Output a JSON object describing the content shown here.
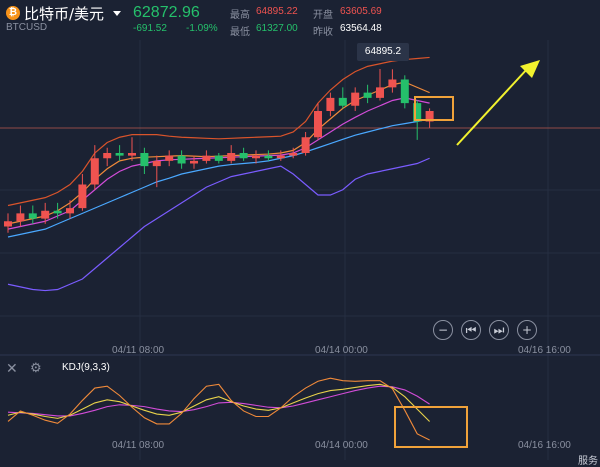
{
  "header": {
    "coin_icon": "bitcoin-icon",
    "coin_glyph": "₿",
    "pair": "比特币/美元",
    "symbol": "BTCUSD",
    "price": "62872.96",
    "change": "-691.52",
    "change_percent": "-1.09%",
    "high_label": "最高",
    "high_value": "64895.22",
    "open_label": "开盘",
    "open_value": "63605.69",
    "low_label": "最低",
    "low_value": "61327.00",
    "prev_label": "昨收",
    "prev_value": "63564.48"
  },
  "tooltip": "64895.2",
  "indicator": {
    "label": "KDJ(9,3,3)",
    "close_icon": "close-icon",
    "settings_icon": "gear-icon"
  },
  "zoom_controls": [
    {
      "icon": "zoom-out-icon",
      "glyph": "−"
    },
    {
      "icon": "skip-back-icon",
      "glyph": "⏮"
    },
    {
      "icon": "skip-forward-icon",
      "glyph": "⏭"
    },
    {
      "icon": "zoom-in-icon",
      "glyph": "+"
    }
  ],
  "dates_main": [
    "04/11 08:00",
    "04/14 00:00",
    "04/16 16:00"
  ],
  "dates_kdj": [
    "04/11 08:00",
    "04/14 00:00",
    "04/16 16:00"
  ],
  "corner_text": "服务",
  "colors": {
    "background": "#1b2233",
    "up": "#ef5350",
    "down": "#25c06b",
    "ma_blue": "#4aa8ff",
    "ma_magenta": "#d24cd8",
    "ma_orange": "#f08a3a",
    "ma_purple": "#7a5cff",
    "annotation": "#f0a23a",
    "arrow": "#f2f22e"
  },
  "chart_data": {
    "type": "candlestick",
    "candles": [
      {
        "o": 61900,
        "c": 62000,
        "h": 62150,
        "l": 61780
      },
      {
        "o": 62000,
        "c": 62150,
        "h": 62300,
        "l": 61900
      },
      {
        "o": 62150,
        "c": 62050,
        "h": 62300,
        "l": 61950
      },
      {
        "o": 62050,
        "c": 62200,
        "h": 62350,
        "l": 61950
      },
      {
        "o": 62200,
        "c": 62150,
        "h": 62350,
        "l": 62050
      },
      {
        "o": 62150,
        "c": 62250,
        "h": 62400,
        "l": 62050
      },
      {
        "o": 62250,
        "c": 62700,
        "h": 62900,
        "l": 62200
      },
      {
        "o": 62700,
        "c": 63200,
        "h": 63450,
        "l": 62600
      },
      {
        "o": 63200,
        "c": 63300,
        "h": 63400,
        "l": 63050
      },
      {
        "o": 63300,
        "c": 63250,
        "h": 63450,
        "l": 63150
      },
      {
        "o": 63250,
        "c": 63300,
        "h": 63600,
        "l": 63150
      },
      {
        "o": 63300,
        "c": 63050,
        "h": 63400,
        "l": 62900
      },
      {
        "o": 63050,
        "c": 63150,
        "h": 63250,
        "l": 62650
      },
      {
        "o": 63150,
        "c": 63250,
        "h": 63350,
        "l": 63050
      },
      {
        "o": 63250,
        "c": 63100,
        "h": 63350,
        "l": 63000
      },
      {
        "o": 63100,
        "c": 63150,
        "h": 63250,
        "l": 63000
      },
      {
        "o": 63150,
        "c": 63250,
        "h": 63350,
        "l": 63100
      },
      {
        "o": 63250,
        "c": 63150,
        "h": 63300,
        "l": 63100
      },
      {
        "o": 63150,
        "c": 63300,
        "h": 63450,
        "l": 63100
      },
      {
        "o": 63300,
        "c": 63200,
        "h": 63400,
        "l": 63150
      },
      {
        "o": 63200,
        "c": 63250,
        "h": 63350,
        "l": 63100
      },
      {
        "o": 63250,
        "c": 63200,
        "h": 63350,
        "l": 63150
      },
      {
        "o": 63200,
        "c": 63250,
        "h": 63350,
        "l": 63150
      },
      {
        "o": 63250,
        "c": 63300,
        "h": 63400,
        "l": 63200
      },
      {
        "o": 63300,
        "c": 63600,
        "h": 63700,
        "l": 63250
      },
      {
        "o": 63600,
        "c": 64100,
        "h": 64250,
        "l": 63550
      },
      {
        "o": 64100,
        "c": 64350,
        "h": 64450,
        "l": 64000
      },
      {
        "o": 64350,
        "c": 64200,
        "h": 64550,
        "l": 64150
      },
      {
        "o": 64200,
        "c": 64450,
        "h": 64550,
        "l": 64100
      },
      {
        "o": 64450,
        "c": 64350,
        "h": 64600,
        "l": 64250
      },
      {
        "o": 64350,
        "c": 64550,
        "h": 64900,
        "l": 64300
      },
      {
        "o": 64550,
        "c": 64700,
        "h": 64895,
        "l": 64450
      },
      {
        "o": 64700,
        "c": 64250,
        "h": 64780,
        "l": 64150
      },
      {
        "o": 64250,
        "c": 63900,
        "h": 64300,
        "l": 63550
      },
      {
        "o": 63900,
        "c": 64100,
        "h": 64150,
        "l": 63780
      }
    ],
    "ma": [
      {
        "name": "MA-blue",
        "color": "#4aa8ff",
        "values": [
          61700,
          61750,
          61800,
          61850,
          61950,
          62050,
          62150,
          62250,
          62350,
          62450,
          62550,
          62650,
          62750,
          62820,
          62900,
          62950,
          63000,
          63050,
          63080,
          63100,
          63120,
          63150,
          63200,
          63250,
          63320,
          63400,
          63480,
          63560,
          63640,
          63700,
          63760,
          63820,
          63860,
          63900,
          63950
        ]
      },
      {
        "name": "MA-magenta",
        "color": "#d24cd8",
        "values": [
          61850,
          61900,
          61950,
          62000,
          62100,
          62200,
          62400,
          62600,
          62800,
          62950,
          63050,
          63100,
          63150,
          63170,
          63180,
          63190,
          63200,
          63210,
          63220,
          63230,
          63240,
          63250,
          63260,
          63300,
          63400,
          63550,
          63700,
          63850,
          63980,
          64100,
          64200,
          64300,
          64350,
          64300,
          64250
        ]
      },
      {
        "name": "MA-orange",
        "color": "#f08a3a",
        "values": [
          61950,
          62000,
          62050,
          62100,
          62200,
          62350,
          62550,
          62800,
          63000,
          63150,
          63200,
          63220,
          63230,
          63240,
          63250,
          63240,
          63230,
          63240,
          63250,
          63260,
          63270,
          63280,
          63300,
          63350,
          63500,
          63750,
          63950,
          64150,
          64300,
          64400,
          64500,
          64600,
          64650,
          64550,
          64450
        ]
      },
      {
        "name": "BOLL-upper",
        "color": "#d9542b",
        "values": [
          62300,
          62350,
          62400,
          62450,
          62550,
          62700,
          62950,
          63300,
          63500,
          63600,
          63650,
          63650,
          63650,
          63620,
          63600,
          63590,
          63580,
          63570,
          63580,
          63590,
          63600,
          63610,
          63620,
          63700,
          63900,
          64250,
          64500,
          64700,
          64850,
          64950,
          65000,
          65050,
          65080,
          65100,
          65120
        ]
      },
      {
        "name": "BOLL-lower",
        "color": "#7a5cff",
        "values": [
          60800,
          60750,
          60700,
          60680,
          60700,
          60800,
          60900,
          61100,
          61300,
          61500,
          61700,
          61900,
          62050,
          62200,
          62350,
          62500,
          62650,
          62750,
          62850,
          62900,
          62950,
          63000,
          63050,
          62900,
          62700,
          62500,
          62500,
          62600,
          62800,
          62900,
          62950,
          63000,
          63050,
          63100,
          63200
        ]
      }
    ],
    "kdj": {
      "K": [
        30,
        35,
        32,
        28,
        25,
        30,
        40,
        50,
        55,
        52,
        45,
        38,
        32,
        30,
        35,
        45,
        55,
        60,
        52,
        45,
        40,
        38,
        42,
        50,
        58,
        65,
        70,
        72,
        75,
        78,
        80,
        75,
        60,
        40,
        20
      ],
      "D": [
        35,
        34,
        33,
        31,
        29,
        29,
        33,
        38,
        44,
        47,
        46,
        44,
        40,
        37,
        36,
        39,
        44,
        50,
        51,
        49,
        46,
        43,
        42,
        45,
        50,
        55,
        60,
        65,
        70,
        74,
        77,
        76,
        71,
        61,
        48
      ],
      "J": [
        20,
        37,
        30,
        22,
        17,
        32,
        54,
        74,
        77,
        62,
        43,
        26,
        16,
        16,
        33,
        57,
        77,
        80,
        54,
        37,
        28,
        28,
        42,
        60,
        74,
        85,
        90,
        86,
        85,
        86,
        86,
        73,
        38,
        0,
        -10
      ]
    },
    "title": "",
    "xlabel": "",
    "ylabel": ""
  }
}
